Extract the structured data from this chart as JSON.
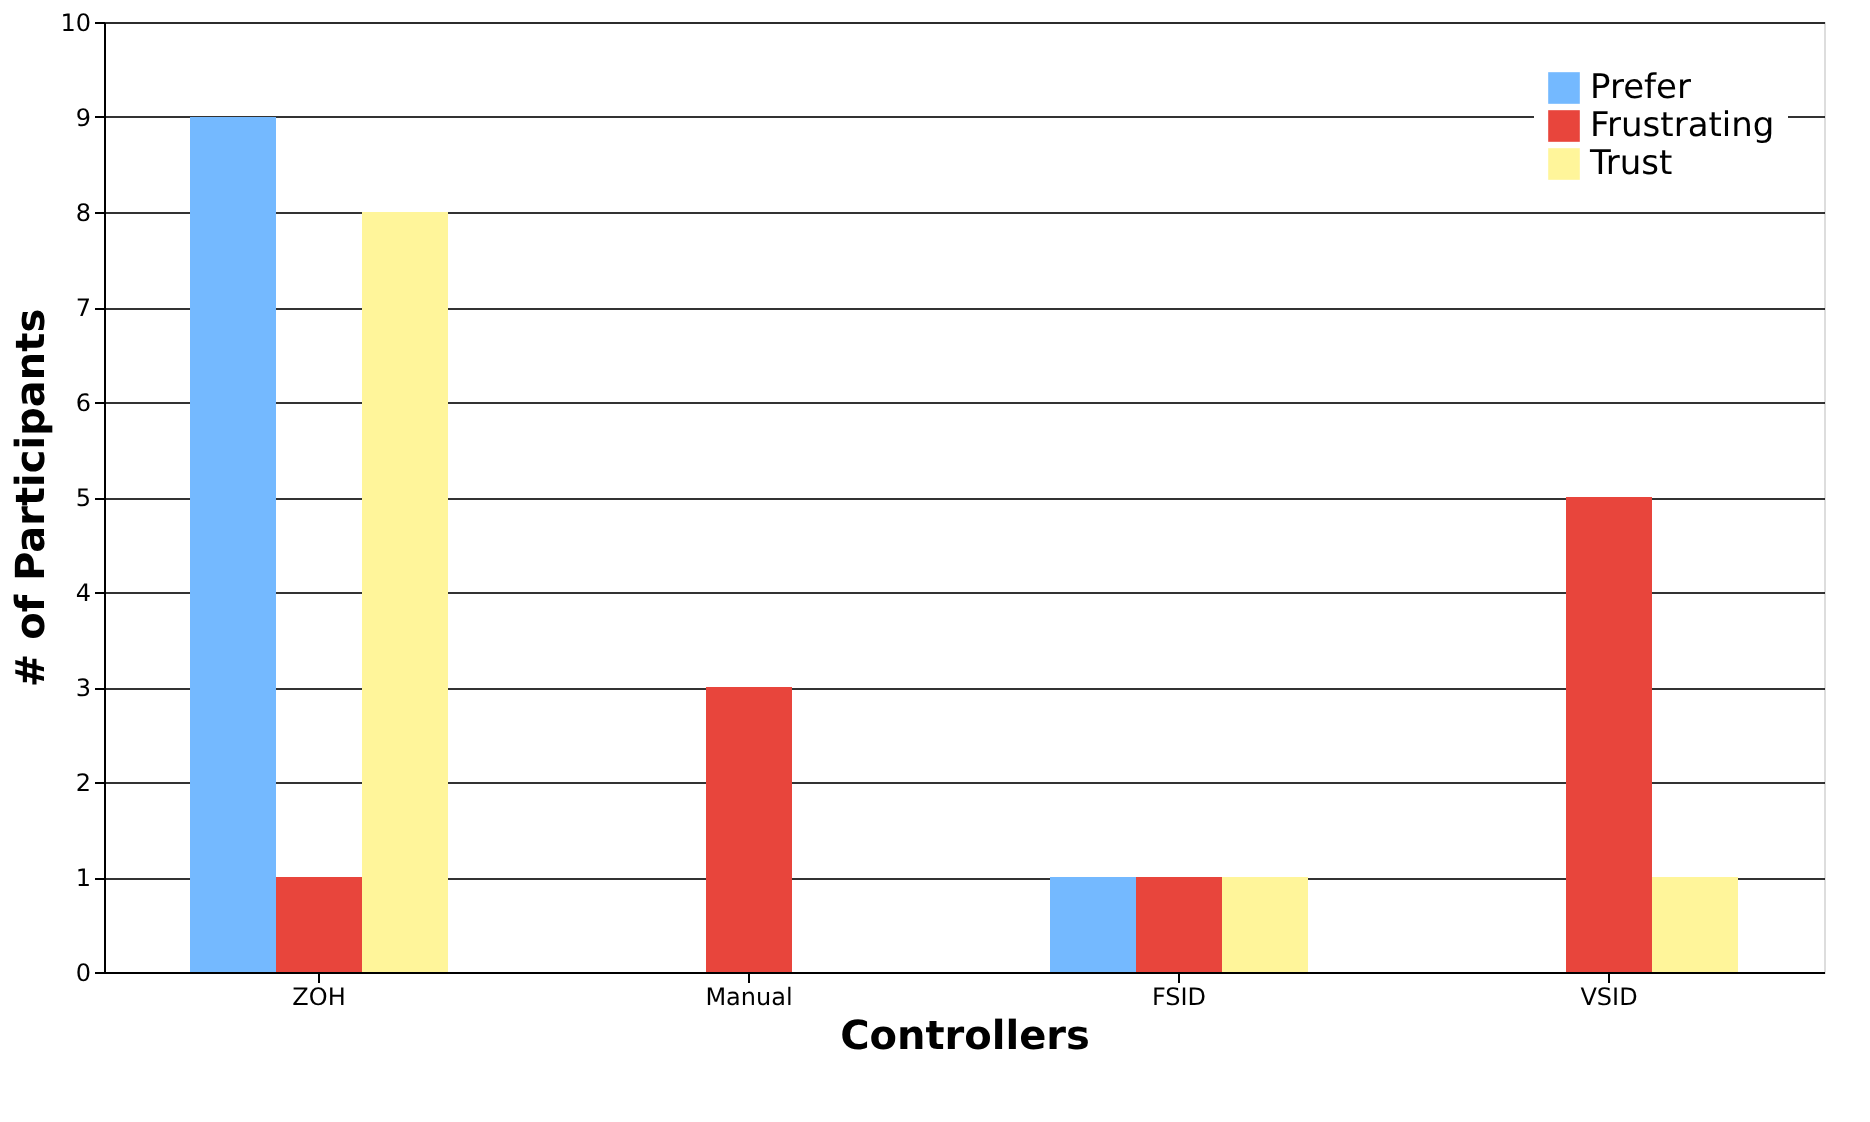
{
  "chart_data": {
    "type": "bar",
    "xlabel": "Controllers",
    "ylabel": "# of Participants",
    "categories": [
      "ZOH",
      "Manual",
      "FSID",
      "VSID"
    ],
    "series": [
      {
        "name": "Prefer",
        "color": "#74b9ff",
        "values": [
          9,
          0,
          1,
          0
        ]
      },
      {
        "name": "Frustrating",
        "color": "#e8453c",
        "values": [
          1,
          3,
          1,
          5
        ]
      },
      {
        "name": "Trust",
        "color": "#fff59a",
        "values": [
          8,
          0,
          1,
          1
        ]
      }
    ],
    "ylim": [
      0,
      10
    ],
    "yticks": [
      0,
      1,
      2,
      3,
      4,
      5,
      6,
      7,
      8,
      9,
      10
    ],
    "grid": "y",
    "legend": "top right"
  }
}
